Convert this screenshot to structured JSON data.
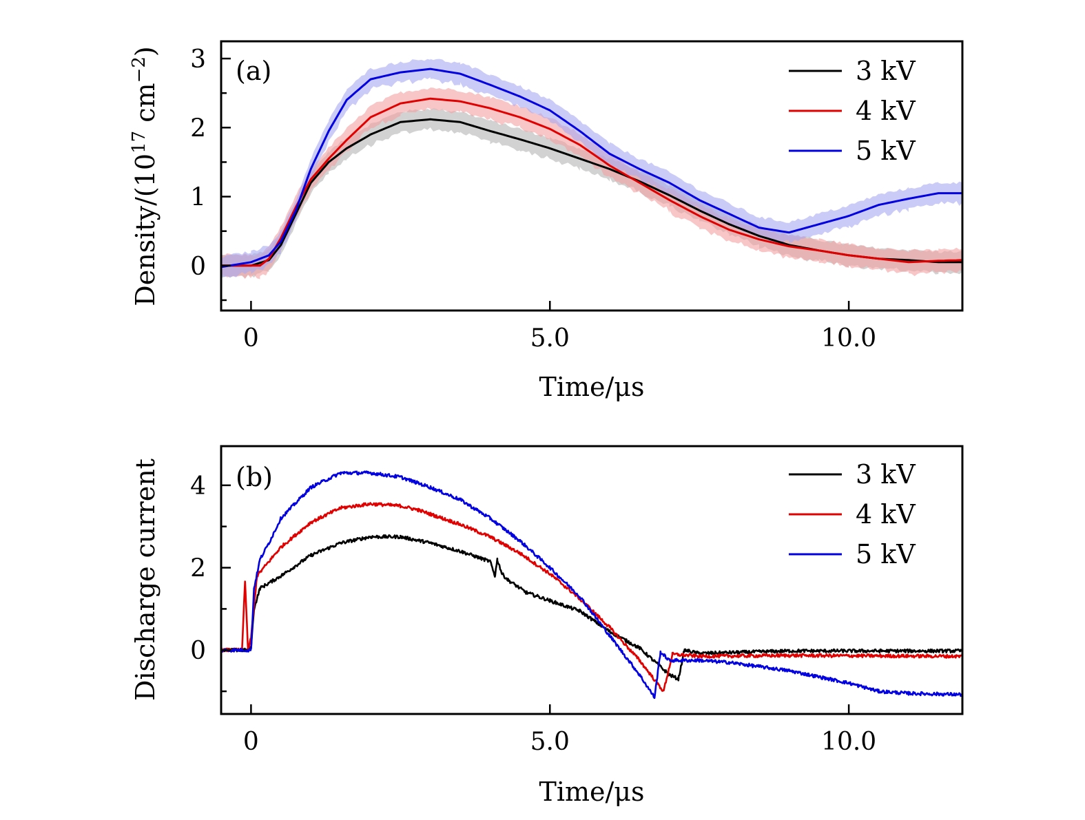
{
  "chart_data": [
    {
      "id": "a",
      "type": "line",
      "panel_label": "(a)",
      "title": "",
      "xlabel": "Time/μs",
      "ylabel": "Density/(10¹⁷ cm⁻²)",
      "ylabel_parts": {
        "base": "Density/(10",
        "sup1": "17",
        "mid": " cm",
        "sup2": "−2",
        "end": ")"
      },
      "xlim": [
        -0.5,
        11.9
      ],
      "ylim": [
        -0.65,
        3.25
      ],
      "xticks": [
        {
          "v": 0,
          "label": "0"
        },
        {
          "v": 5,
          "label": "5.0"
        },
        {
          "v": 10,
          "label": "10.0"
        }
      ],
      "yticks": [
        {
          "v": 0,
          "label": "0"
        },
        {
          "v": 1,
          "label": "1"
        },
        {
          "v": 2,
          "label": "2"
        },
        {
          "v": 3,
          "label": "3"
        }
      ],
      "yminor": [
        -0.5,
        0.5,
        1.5,
        2.5
      ],
      "grid": false,
      "legend_position": "top-right",
      "series": [
        {
          "name": "3 kV",
          "color": "#000000",
          "band_color": "#b4b4b4",
          "band_halfwidth": 0.15,
          "x": [
            -0.5,
            0,
            0.3,
            0.5,
            0.75,
            1,
            1.3,
            1.6,
            2,
            2.5,
            3,
            3.5,
            4,
            4.5,
            5,
            5.5,
            6,
            6.5,
            7,
            7.5,
            8,
            8.5,
            9,
            9.5,
            10,
            10.5,
            11,
            11.5,
            11.9
          ],
          "y": [
            0.0,
            0.0,
            0.08,
            0.3,
            0.75,
            1.2,
            1.5,
            1.7,
            1.9,
            2.08,
            2.12,
            2.08,
            1.95,
            1.83,
            1.7,
            1.55,
            1.4,
            1.22,
            1.02,
            0.8,
            0.6,
            0.43,
            0.3,
            0.22,
            0.15,
            0.1,
            0.08,
            0.05,
            0.05
          ]
        },
        {
          "name": "4 kV",
          "color": "#e00000",
          "band_color": "#f4a0a0",
          "band_halfwidth": 0.16,
          "x": [
            -0.5,
            0,
            0.15,
            0.3,
            0.5,
            0.75,
            1,
            1.3,
            1.6,
            2,
            2.5,
            3,
            3.5,
            4,
            4.5,
            5,
            5.5,
            6,
            6.5,
            7,
            7.5,
            8,
            8.5,
            9,
            9.5,
            10,
            10.5,
            11,
            11.5,
            11.9
          ],
          "y": [
            0.0,
            0.0,
            0.0,
            0.1,
            0.4,
            0.85,
            1.25,
            1.55,
            1.82,
            2.15,
            2.35,
            2.42,
            2.38,
            2.28,
            2.15,
            1.98,
            1.75,
            1.45,
            1.2,
            0.95,
            0.72,
            0.52,
            0.38,
            0.28,
            0.22,
            0.15,
            0.1,
            0.05,
            0.07,
            0.08
          ]
        },
        {
          "name": "5 kV",
          "color": "#0000e0",
          "band_color": "#a8a8f4",
          "band_halfwidth": 0.15,
          "x": [
            -0.5,
            0,
            0.3,
            0.5,
            0.75,
            1,
            1.3,
            1.6,
            2,
            2.5,
            3,
            3.5,
            4,
            4.5,
            5,
            5.5,
            6,
            6.5,
            7,
            7.5,
            8,
            8.5,
            9,
            9.5,
            10,
            10.5,
            11,
            11.5,
            11.9
          ],
          "y": [
            -0.02,
            0.05,
            0.15,
            0.35,
            0.8,
            1.4,
            1.95,
            2.4,
            2.7,
            2.8,
            2.85,
            2.78,
            2.62,
            2.45,
            2.25,
            1.95,
            1.62,
            1.4,
            1.2,
            0.95,
            0.75,
            0.55,
            0.48,
            0.6,
            0.72,
            0.88,
            0.97,
            1.05,
            1.05
          ]
        }
      ]
    },
    {
      "id": "b",
      "type": "line",
      "panel_label": "(b)",
      "title": "",
      "xlabel": "Time/μs",
      "ylabel": "Discharge current",
      "xlim": [
        -0.5,
        11.9
      ],
      "ylim": [
        -1.55,
        4.95
      ],
      "xticks": [
        {
          "v": 0,
          "label": "0"
        },
        {
          "v": 5,
          "label": "5.0"
        },
        {
          "v": 10,
          "label": "10.0"
        }
      ],
      "yticks": [
        {
          "v": 0,
          "label": "0"
        },
        {
          "v": 2,
          "label": "2"
        },
        {
          "v": 4,
          "label": "4"
        }
      ],
      "yminor": [
        -1,
        1,
        3
      ],
      "grid": false,
      "legend_position": "top-right",
      "series": [
        {
          "name": "3 kV",
          "color": "#000000",
          "noise": 0.04,
          "x": [
            -0.5,
            -0.05,
            0.0,
            0.05,
            0.15,
            0.5,
            1,
            1.5,
            2,
            2.5,
            3,
            3.5,
            4.0,
            4.08,
            4.12,
            4.2,
            4.3,
            4.6,
            5,
            5.5,
            6,
            6.5,
            7,
            7.15,
            7.25,
            7.5,
            9,
            11.9
          ],
          "y": [
            0.0,
            0.0,
            0.05,
            1.0,
            1.5,
            1.8,
            2.3,
            2.6,
            2.75,
            2.75,
            2.6,
            2.4,
            2.15,
            1.8,
            2.2,
            1.85,
            1.7,
            1.4,
            1.2,
            0.95,
            0.45,
            0.05,
            -0.6,
            -0.7,
            0.0,
            -0.08,
            -0.02,
            -0.02
          ]
        },
        {
          "name": "4 kV",
          "color": "#e00000",
          "noise": 0.04,
          "x": [
            -0.5,
            -0.15,
            -0.1,
            -0.05,
            0.0,
            0.1,
            0.5,
            1,
            1.5,
            2,
            2.5,
            2.8,
            3,
            3.5,
            4,
            4.5,
            5,
            5.5,
            6,
            6.5,
            6.9,
            7.05,
            7.5,
            9,
            11.9
          ],
          "y": [
            0.0,
            0.0,
            1.7,
            0.0,
            0.3,
            1.8,
            2.5,
            3.1,
            3.45,
            3.55,
            3.5,
            3.4,
            3.3,
            3.05,
            2.75,
            2.35,
            1.85,
            1.25,
            0.55,
            -0.25,
            -1.0,
            -0.1,
            -0.15,
            -0.13,
            -0.15
          ]
        },
        {
          "name": "5 kV",
          "color": "#0000e0",
          "noise": 0.04,
          "x": [
            -0.5,
            0,
            0.05,
            0.15,
            0.3,
            0.5,
            1,
            1.5,
            2,
            2.5,
            3,
            3.5,
            4,
            4.5,
            5,
            5.5,
            6,
            6.5,
            6.75,
            6.85,
            7,
            7.5,
            8,
            9,
            10,
            10.5,
            11,
            11.9
          ],
          "y": [
            0.0,
            0.0,
            1.5,
            2.2,
            2.6,
            3.2,
            3.95,
            4.3,
            4.3,
            4.2,
            3.95,
            3.65,
            3.2,
            2.65,
            2.0,
            1.3,
            0.35,
            -0.6,
            -1.15,
            -0.05,
            -0.25,
            -0.25,
            -0.3,
            -0.5,
            -0.8,
            -1.0,
            -1.05,
            -1.08
          ]
        }
      ]
    }
  ]
}
